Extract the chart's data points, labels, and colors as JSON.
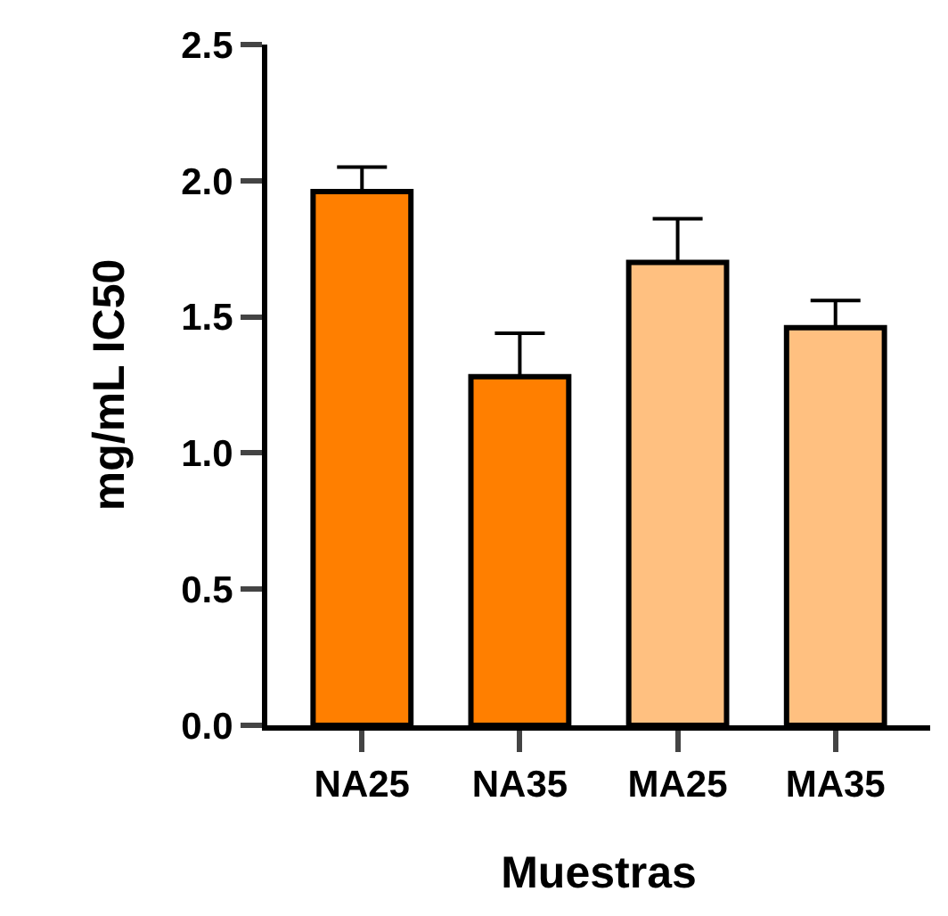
{
  "chart_data": {
    "type": "bar",
    "xlabel": "Muestras",
    "ylabel": "mg/mL IC50",
    "categories": [
      "NA25",
      "NA35",
      "MA25",
      "MA35"
    ],
    "values": [
      1.96,
      1.28,
      1.7,
      1.46
    ],
    "colors": [
      "#ff7f00",
      "#ff7f00",
      "#ffc080",
      "#ffc080"
    ],
    "errors": [
      [
        1.96,
        2.05
      ],
      [
        1.28,
        1.44
      ],
      [
        1.7,
        1.86
      ],
      [
        1.46,
        1.56
      ]
    ],
    "ylim": [
      0,
      2.5
    ],
    "yticks": [
      {
        "value": 0,
        "label": "0.0"
      },
      0.5,
      {
        "value": 1,
        "label": "1.0"
      },
      1.5,
      {
        "value": 2,
        "label": "2.0"
      },
      2.5
    ]
  }
}
